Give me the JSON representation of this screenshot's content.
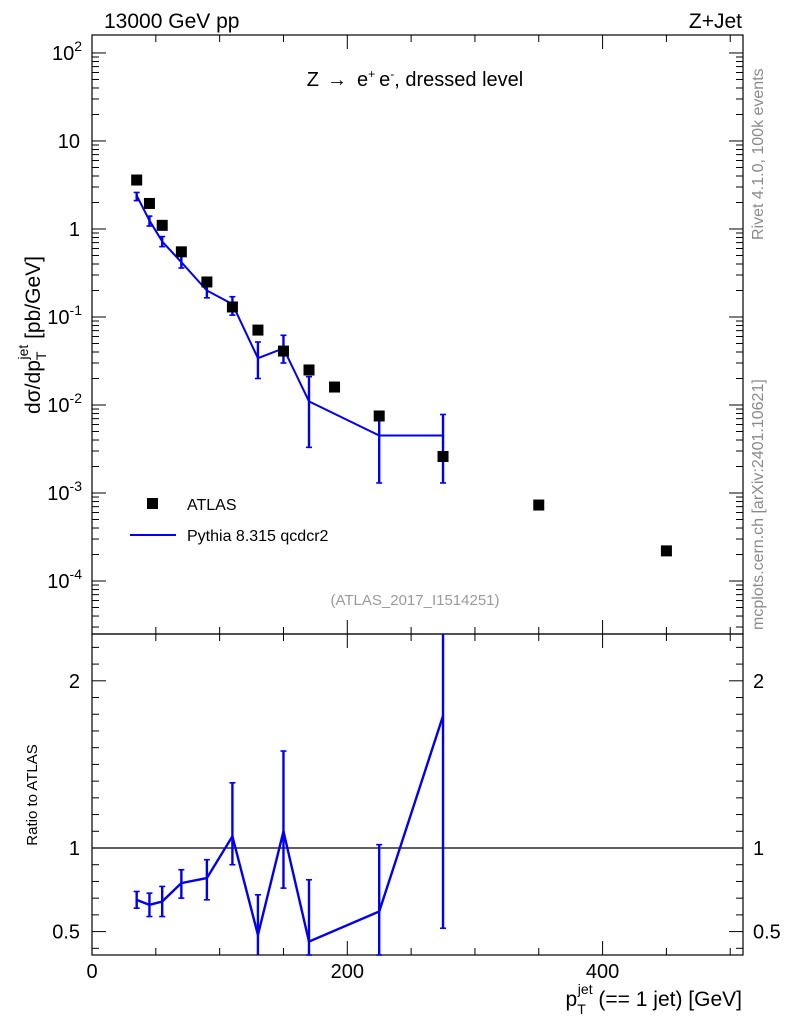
{
  "header": {
    "left_label": "13000 GeV pp",
    "right_label": "Z+Jet"
  },
  "side": {
    "rivet_label": "Rivet 4.1.0,  100k events",
    "mcplots_label": "mcplots.cern.ch [arXiv:2401.10621]"
  },
  "colors": {
    "mc": "#0000ee",
    "data": "#000000",
    "analysis_tag": "#9a9a9a"
  },
  "chart_data": [
    {
      "type": "scatter",
      "title": "Z → e⁺ e⁻, dressed level",
      "title_parts": {
        "prefix": "Z",
        "arrow": "→",
        "e1": "e",
        "sup1": "+",
        "e2": "e",
        "sup2": "-",
        "suffix": ", dressed level"
      },
      "analysis_tag": "(ATLAS_2017_I1514251)",
      "ylabel": "dσ/dp_T^jet [pb/GeV]",
      "ylabel_parts": {
        "prefix": "dσ/dp",
        "sub": "T",
        "sup": "jet",
        "suffix": " [pb/GeV]"
      },
      "yscale": "log",
      "xlim": [
        0,
        510
      ],
      "ylim": [
        2.5e-05,
        160
      ],
      "yticks": [
        {
          "base": "10",
          "exp": "2"
        },
        {
          "base": "10",
          "exp": ""
        },
        {
          "base": "1",
          "exp": ""
        },
        {
          "base": "10",
          "exp": "-1"
        },
        {
          "base": "10",
          "exp": "-2"
        },
        {
          "base": "10",
          "exp": "-3"
        },
        {
          "base": "10",
          "exp": "-4"
        }
      ],
      "ytick_values": [
        100,
        10,
        1,
        0.1,
        0.01,
        0.001,
        0.0001
      ],
      "legend_position": "bottom-left",
      "legend": {
        "data_label": "ATLAS",
        "mc_label": "Pythia 8.315 qcdcr2"
      },
      "series": [
        {
          "name": "ATLAS",
          "x": [
            35,
            45,
            55,
            70,
            90,
            110,
            130,
            150,
            170,
            190,
            225,
            275,
            350,
            450
          ],
          "y": [
            3.6,
            1.95,
            1.1,
            0.55,
            0.25,
            0.13,
            0.071,
            0.041,
            0.025,
            0.016,
            0.0075,
            0.0026,
            0.00073,
            0.00022
          ]
        },
        {
          "name": "Pythia 8.315 qcdcr2",
          "x_edges": [
            [
              30,
              40
            ],
            [
              40,
              50
            ],
            [
              50,
              60
            ],
            [
              60,
              80
            ],
            [
              80,
              100
            ],
            [
              100,
              120
            ],
            [
              120,
              140
            ],
            [
              140,
              160
            ],
            [
              160,
              180
            ],
            [
              180,
              250
            ],
            [
              250,
              300
            ]
          ],
          "x": [
            35,
            45,
            55,
            70,
            90,
            110,
            130,
            150,
            170,
            225,
            275
          ],
          "y": [
            2.4,
            1.25,
            0.72,
            0.42,
            0.2,
            0.14,
            0.034,
            0.044,
            0.011,
            0.0045,
            0.0045
          ],
          "yerr_low": [
            2.1,
            1.08,
            0.63,
            0.36,
            0.165,
            0.105,
            0.02,
            0.03,
            0.0033,
            0.0013,
            0.0013
          ],
          "yerr_high": [
            2.6,
            1.4,
            0.82,
            0.5,
            0.245,
            0.17,
            0.052,
            0.062,
            0.021,
            0.0078,
            0.0078
          ]
        }
      ]
    },
    {
      "type": "line",
      "ylabel": "Ratio to ATLAS",
      "xlabel": "p_T^jet (== 1 jet) [GeV]",
      "xlabel_parts": {
        "prefix": "p",
        "sub": "T",
        "sup": "jet",
        "suffix": " (== 1 jet) [GeV]"
      },
      "xlim": [
        0,
        510
      ],
      "ylim": [
        0.36,
        2.28
      ],
      "xticks": [
        0,
        200,
        400
      ],
      "yticks": [
        0.5,
        1,
        2
      ],
      "ytick_labels": [
        "0.5",
        "1",
        "2"
      ],
      "reference_line": 1,
      "series": [
        {
          "name": "Pythia 8.315 qcdcr2",
          "x": [
            35,
            45,
            55,
            70,
            90,
            110,
            130,
            150,
            170,
            225,
            275
          ],
          "y": [
            0.69,
            0.66,
            0.68,
            0.79,
            0.82,
            1.07,
            0.48,
            1.1,
            0.44,
            0.62,
            1.79
          ],
          "yerr_low": [
            0.64,
            0.59,
            0.59,
            0.7,
            0.69,
            0.9,
            0.3,
            0.76,
            0.36,
            0.36,
            0.52
          ],
          "yerr_high": [
            0.74,
            0.73,
            0.77,
            0.87,
            0.93,
            1.39,
            0.72,
            1.58,
            0.81,
            1.02,
            2.4
          ]
        }
      ]
    }
  ]
}
